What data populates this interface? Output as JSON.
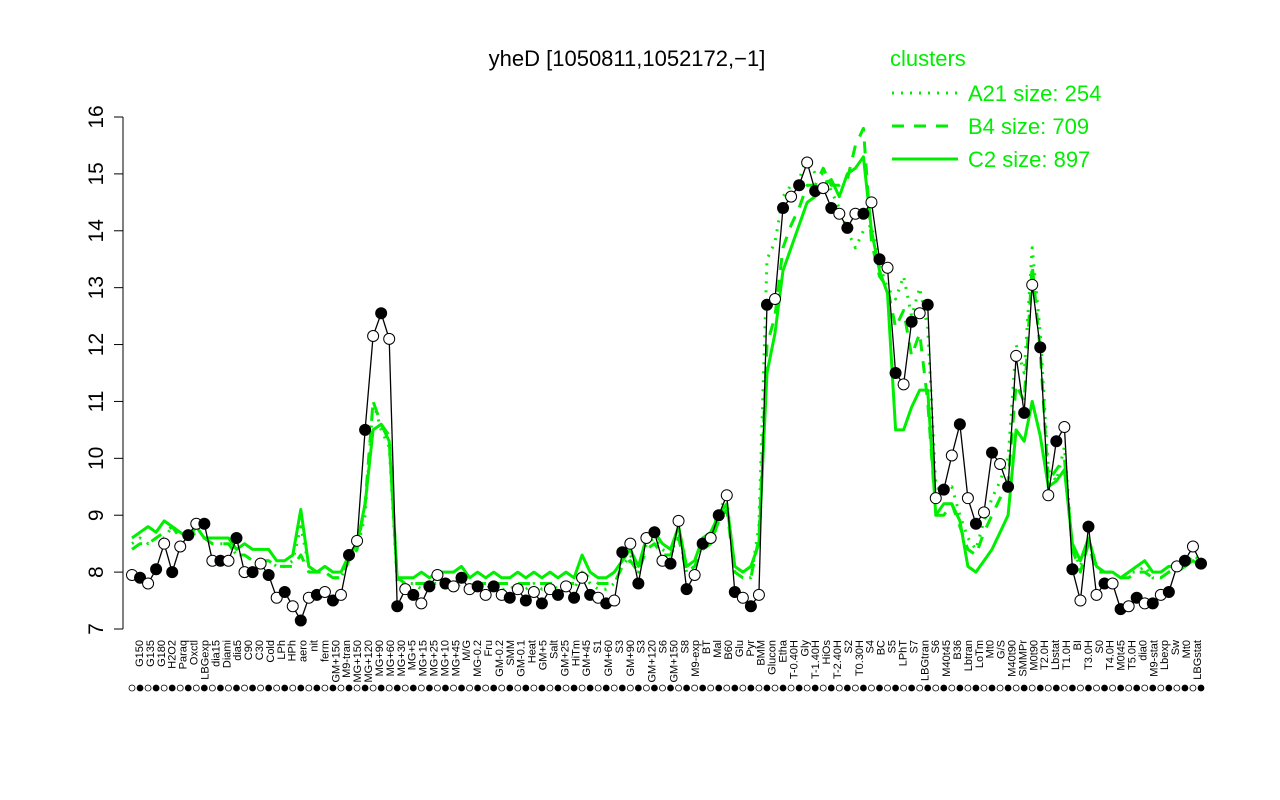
{
  "chart_data": {
    "type": "line",
    "title": "yheD [1050811,1052172,−1]",
    "xlabel": "",
    "ylabel": "",
    "ylim": [
      7,
      16
    ],
    "yticks": [
      7,
      8,
      9,
      10,
      11,
      12,
      13,
      14,
      15,
      16
    ],
    "grid": false,
    "legend": {
      "title": "clusters",
      "placement": "top-right",
      "color": "#00ee00",
      "entries": [
        {
          "label": "A21 size: 254",
          "style": "dotted"
        },
        {
          "label": "B4 size: 709",
          "style": "dashed"
        },
        {
          "label": "C2 size: 897",
          "style": "solid"
        }
      ]
    },
    "x_tick_labels_top": [
      "G135",
      "H2O2",
      "Oxctl",
      "dia15",
      "dia5",
      "C30",
      "LPh",
      "aero",
      "ferm",
      "M9-tran",
      "MG+120",
      "MG+60",
      "MG+5",
      "MG+25",
      "MG+45",
      "MG-0.2",
      "GM-0.2",
      "GM-0.1",
      "GM+5",
      "GM+25",
      "GM+45",
      "GM+60",
      "GM+90",
      "GM+120",
      "GM+150",
      "M9-exp",
      "Mal",
      "Glu",
      "BMM",
      "Etha",
      "Gly",
      "HiOs",
      "S2",
      "S4",
      "S5",
      "S7",
      "S6",
      "B36",
      "LoTm",
      "G/S",
      "SMMPr",
      "T2.0H",
      "T1.0H",
      "T3.0H",
      "T4.0H",
      "T5.0H",
      "M9-stat",
      "Sw",
      "LBGstat"
    ],
    "x_tick_labels_bottom": [
      "G150",
      "G180",
      "Paraq",
      "LBGexp",
      "Diami",
      "C90",
      "Cold",
      "HPh",
      "nit",
      "GM+150",
      "MG+150",
      "MG+90",
      "MG+30",
      "MG+15",
      "MG+10",
      "M/G",
      "Fru",
      "SMM",
      "Heat",
      "Salt",
      "HiTm",
      "S1",
      "S3",
      "S3",
      "S6",
      "S8",
      "BT",
      "B60",
      "Pyr",
      "Glucon",
      "T-0.40H",
      "T-1.40H",
      "T-2.40H",
      "T0.30H",
      "BC",
      "LPhT",
      "LBGtran",
      "M40t45",
      "Lbtran",
      "Mt0",
      "M40t90",
      "M0t90",
      "Lbstat",
      "BI",
      "S0",
      "M0t45",
      "dia0",
      "Lbexp",
      "Mt0"
    ],
    "conditions": [
      "G150",
      "G150",
      "G180",
      "G180",
      "G135",
      "G135",
      "Paraq",
      "Paraq",
      "H2O2",
      "H2O2",
      "LBGexp",
      "LBGexp",
      "Oxctl",
      "Oxctl",
      "dia15",
      "dia15",
      "Diami",
      "Diami",
      "dia5",
      "dia5",
      "C90",
      "C30",
      "Cold",
      "Cold",
      "LPh",
      "HPh",
      "HPh",
      "aero",
      "aero",
      "nit",
      "nit",
      "ferm",
      "ferm",
      "GM+150",
      "M9-tran",
      "MG+150",
      "MG+120",
      "MG+90",
      "MG+60",
      "MG+30",
      "MG+25",
      "MG+15",
      "MG+5",
      "MG+10",
      "MG+45",
      "M/G",
      "MG-0.2",
      "GM-0.2",
      "GM-0.1",
      "GM+5",
      "GM+25",
      "GM+45",
      "GM+60",
      "GM+90",
      "GM+120",
      "GM+150",
      "M9-exp",
      "M/G",
      "Mal",
      "Fru",
      "Glu",
      "SMM",
      "SMM",
      "BMM",
      "Heat",
      "Heat",
      "Etha",
      "Etha",
      "Salt",
      "Gly",
      "Gly",
      "HiTm",
      "HiTm",
      "HiOs",
      "HiOs",
      "S1",
      "S1",
      "S2",
      "S2",
      "S3",
      "S3",
      "S4",
      "S4",
      "S5",
      "S5",
      "S6",
      "S6",
      "S7",
      "S8",
      "S6",
      "B36",
      "B36",
      "BT",
      "B60",
      "LoTm",
      "LoTm",
      "Pyr",
      "G/S",
      "G/S",
      "Glucon",
      "SMMPr",
      "T-0.40H",
      "T-1.40H",
      "T-2.40H",
      "T0.30H",
      "T1.0H",
      "T2.0H",
      "T3.0H",
      "T4.0H",
      "T5.0H",
      "T5.0H",
      "M9-stat",
      "M9-stat",
      "BC",
      "BC",
      "Sw",
      "LPhT",
      "LBGstat",
      "LBGtran",
      "M40t45",
      "Lbtran",
      "Mt0",
      "M40t90",
      "M0t90",
      "Lbstat",
      "BI",
      "S0",
      "M0t45",
      "dia0",
      "Lbexp",
      "Mt0"
    ],
    "series": [
      {
        "name": "",
        "color": "#000000",
        "values": [
          7.95,
          7.9,
          7.8,
          8.05,
          8.5,
          8.0,
          8.45,
          8.65,
          8.85,
          8.85,
          8.2,
          8.2,
          8.2,
          8.6,
          8.0,
          8.0,
          8.15,
          7.95,
          7.55,
          7.65,
          7.4,
          7.15,
          7.55,
          7.6,
          7.65,
          7.5,
          7.6,
          8.3,
          8.55,
          10.5,
          12.15,
          12.55,
          12.1,
          7.4,
          7.7,
          7.6,
          7.45,
          7.75,
          7.95,
          7.8,
          7.75,
          7.9,
          7.7,
          7.75,
          7.6,
          7.75,
          7.6,
          7.55,
          7.7,
          7.5,
          7.65,
          7.45,
          7.7,
          7.6,
          7.75,
          7.55,
          7.9,
          7.6,
          7.55,
          7.45,
          7.5,
          8.35,
          8.5,
          7.8,
          8.6,
          8.7,
          8.2,
          8.15,
          8.9,
          7.7,
          7.95,
          8.5,
          8.6,
          9.0,
          9.35,
          7.65,
          7.55,
          7.4,
          7.6,
          12.7,
          12.8,
          14.4,
          14.6,
          14.8,
          15.2,
          14.7,
          14.75,
          14.4,
          14.3,
          14.05,
          14.3,
          14.3,
          14.5,
          13.5,
          13.35,
          11.5,
          11.3,
          12.4,
          12.55,
          12.7,
          9.3,
          9.45,
          10.05,
          10.6,
          9.3,
          8.85,
          9.05,
          10.1,
          9.9,
          9.5,
          11.8,
          10.8,
          13.05,
          11.95,
          9.35,
          10.3,
          10.55,
          8.05,
          7.5,
          8.8,
          7.6,
          7.8,
          7.8,
          7.35,
          7.4,
          7.55,
          7.45,
          7.45,
          7.6,
          7.65,
          8.1,
          8.2,
          8.45,
          8.15
        ]
      },
      {
        "name": "A21 size: 254",
        "style": "dotted",
        "color": "#00ee00",
        "values": [
          8.5,
          8.6,
          8.5,
          8.6,
          8.6,
          8.8,
          8.7,
          8.6,
          8.8,
          8.6,
          8.5,
          8.5,
          8.5,
          8.3,
          8.3,
          8.2,
          8.2,
          8.2,
          8.1,
          8.1,
          8.2,
          8.8,
          8.1,
          8.0,
          8.0,
          7.9,
          7.9,
          8.2,
          8.4,
          9.0,
          11.0,
          10.5,
          10.2,
          7.8,
          7.8,
          7.8,
          7.7,
          7.8,
          7.8,
          7.7,
          7.7,
          7.8,
          7.7,
          7.8,
          7.7,
          7.8,
          7.7,
          7.7,
          7.8,
          7.7,
          7.8,
          7.7,
          7.8,
          7.7,
          7.8,
          7.7,
          8.0,
          7.8,
          7.7,
          7.7,
          7.8,
          8.1,
          8.3,
          8.0,
          8.5,
          8.6,
          8.4,
          8.3,
          8.7,
          8.0,
          8.1,
          8.5,
          8.6,
          9.1,
          9.3,
          8.0,
          7.9,
          7.9,
          8.8,
          13.5,
          13.8,
          14.6,
          14.8,
          14.9,
          15.3,
          15.0,
          15.0,
          14.7,
          14.4,
          14.0,
          13.7,
          14.0,
          14.1,
          13.4,
          13.0,
          12.8,
          13.2,
          12.5,
          13.0,
          12.3,
          9.5,
          9.4,
          9.5,
          9.0,
          8.6,
          8.4,
          8.9,
          9.3,
          9.6,
          10.0,
          12.0,
          11.5,
          13.7,
          12.2,
          9.8,
          9.6,
          10.2,
          8.4,
          8.1,
          8.6,
          8.1,
          8.0,
          8.0,
          7.9,
          8.0,
          8.0,
          8.1,
          7.9,
          7.9,
          8.0,
          8.1,
          8.1,
          8.3,
          8.2
        ]
      },
      {
        "name": "B4 size: 709",
        "style": "dashed",
        "color": "#00ee00",
        "values": [
          8.4,
          8.5,
          8.5,
          8.6,
          8.7,
          8.8,
          8.6,
          8.6,
          8.7,
          8.6,
          8.5,
          8.5,
          8.5,
          8.3,
          8.3,
          8.2,
          8.2,
          8.2,
          8.1,
          8.1,
          8.1,
          8.3,
          8.0,
          8.0,
          8.0,
          7.9,
          7.9,
          8.2,
          8.4,
          9.2,
          11.0,
          10.6,
          10.4,
          7.9,
          7.8,
          7.8,
          7.8,
          7.8,
          7.9,
          7.8,
          7.8,
          7.9,
          7.8,
          7.8,
          7.8,
          7.8,
          7.8,
          7.8,
          7.8,
          7.8,
          7.8,
          7.8,
          7.8,
          7.8,
          7.8,
          7.8,
          8.0,
          7.9,
          7.8,
          7.8,
          7.8,
          8.1,
          8.2,
          8.0,
          8.4,
          8.5,
          8.3,
          8.3,
          8.6,
          8.0,
          8.1,
          8.4,
          8.5,
          8.9,
          9.1,
          8.0,
          7.9,
          7.9,
          8.6,
          12.0,
          12.5,
          13.7,
          14.1,
          14.4,
          14.8,
          14.8,
          15.1,
          14.8,
          14.8,
          14.9,
          15.5,
          15.8,
          13.8,
          13.2,
          13.0,
          12.3,
          12.6,
          11.8,
          12.2,
          11.0,
          9.0,
          9.0,
          9.2,
          8.8,
          8.4,
          8.3,
          8.7,
          9.0,
          9.3,
          9.6,
          11.3,
          11.0,
          13.4,
          11.9,
          9.6,
          9.8,
          10.0,
          8.4,
          8.0,
          8.5,
          8.0,
          8.0,
          8.0,
          7.9,
          7.9,
          8.0,
          8.0,
          7.9,
          7.9,
          8.0,
          8.0,
          8.1,
          8.2,
          8.1
        ]
      },
      {
        "name": "C2 size: 897",
        "style": "solid",
        "color": "#00ee00",
        "values": [
          8.6,
          8.7,
          8.8,
          8.7,
          8.9,
          8.8,
          8.7,
          8.6,
          8.8,
          8.6,
          8.6,
          8.6,
          8.6,
          8.4,
          8.5,
          8.4,
          8.4,
          8.4,
          8.2,
          8.2,
          8.3,
          9.1,
          8.1,
          8.0,
          8.1,
          8.0,
          8.0,
          8.3,
          8.5,
          9.2,
          10.5,
          10.6,
          10.3,
          7.9,
          7.9,
          7.9,
          8.0,
          7.9,
          8.0,
          8.0,
          8.0,
          8.1,
          7.9,
          8.0,
          7.9,
          8.0,
          7.9,
          7.9,
          8.0,
          7.9,
          8.0,
          7.9,
          8.0,
          7.9,
          8.0,
          7.9,
          8.3,
          8.0,
          7.9,
          7.9,
          8.0,
          8.2,
          8.4,
          8.1,
          8.6,
          8.7,
          8.5,
          8.4,
          8.8,
          8.1,
          8.2,
          8.6,
          8.7,
          9.0,
          9.2,
          8.1,
          8.0,
          8.1,
          8.5,
          11.5,
          12.2,
          13.3,
          13.7,
          14.1,
          14.5,
          14.6,
          14.8,
          14.9,
          14.6,
          15.0,
          15.1,
          15.3,
          14.0,
          13.3,
          12.9,
          10.5,
          10.5,
          10.9,
          11.2,
          11.2,
          9.0,
          9.2,
          9.2,
          8.9,
          8.1,
          8.0,
          8.2,
          8.4,
          8.7,
          9.0,
          10.5,
          10.3,
          11.0,
          10.4,
          9.5,
          9.6,
          9.8,
          8.5,
          8.2,
          8.6,
          8.1,
          8.0,
          8.0,
          7.9,
          8.0,
          8.1,
          8.2,
          8.0,
          8.0,
          8.1,
          8.1,
          8.1,
          8.2,
          8.1
        ]
      }
    ]
  }
}
